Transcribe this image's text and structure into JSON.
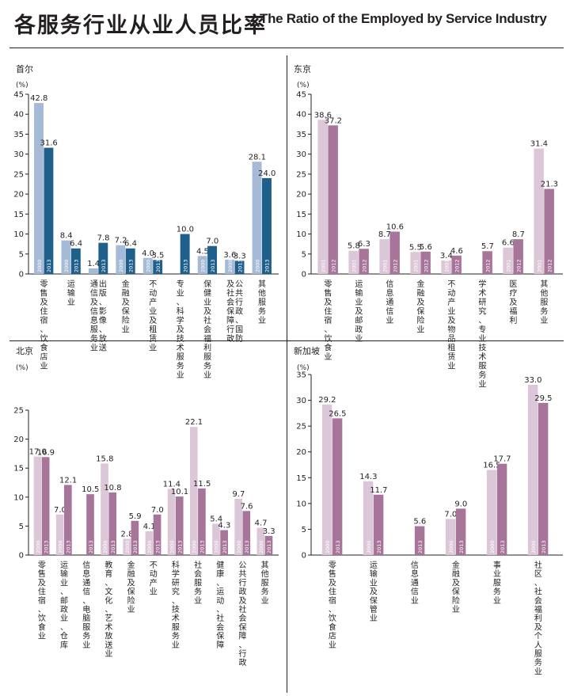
{
  "header": {
    "title_zh": "各服务行业从业人员比率",
    "title_en": "The Ratio of the Employed by Service Industry"
  },
  "chart_data": [
    {
      "type": "bar",
      "city": "首尔",
      "ylabel": "(%)",
      "ylim": [
        0,
        45
      ],
      "yticks": [
        0,
        5,
        10,
        15,
        20,
        25,
        30,
        35,
        40,
        45
      ],
      "grid": false,
      "colors": {
        "2000": "#a4bad6",
        "2013": "#1f5f8b"
      },
      "categories": [
        "零售及住宿、饮食店业",
        "运输业",
        "出版、影像、放送通信及信息服务业",
        "金融及保险业",
        "不动产业及租赁业",
        "专业、科学及技术服务业",
        "保健业及社会福利服务业",
        "公共行政、国防及社会保障行政",
        "其他服务业"
      ],
      "series": [
        {
          "name": "2000",
          "values": [
            42.8,
            8.4,
            1.4,
            7.2,
            4.0,
            null,
            4.5,
            3.6,
            28.1
          ]
        },
        {
          "name": "2013",
          "values": [
            31.6,
            6.4,
            7.8,
            6.4,
            3.5,
            10.0,
            7.0,
            3.3,
            24.0
          ]
        }
      ]
    },
    {
      "type": "bar",
      "city": "东京",
      "ylabel": "(%)",
      "ylim": [
        0,
        45
      ],
      "yticks": [
        0,
        5,
        10,
        15,
        20,
        25,
        30,
        35,
        40,
        45
      ],
      "grid": false,
      "colors": {
        "2001": "#dcc7d8",
        "2012": "#a7749a"
      },
      "categories": [
        "零售及住宿、饮食业",
        "运输业及邮政业",
        "信息通信业",
        "金融及保险业",
        "不动产业及物品租赁业",
        "学术研究、专业技术服务业",
        "医疗及福利",
        "其他服务业"
      ],
      "series": [
        {
          "name": "2001",
          "values": [
            38.6,
            5.8,
            8.7,
            5.5,
            3.4,
            null,
            6.6,
            31.4
          ]
        },
        {
          "name": "2012",
          "values": [
            37.2,
            6.3,
            10.6,
            5.6,
            4.6,
            5.7,
            8.7,
            21.3
          ]
        }
      ]
    },
    {
      "type": "bar",
      "city": "北京",
      "ylabel": "(%)",
      "ylim": [
        0,
        25
      ],
      "yticks": [
        0,
        5,
        10,
        15,
        20,
        25
      ],
      "grid": false,
      "colors": {
        "2000": "#dcc7d8",
        "2013": "#a7749a"
      },
      "categories": [
        "零售及住宿、饮食业",
        "运输业、邮政业、仓库",
        "信息通信、电脑服务业",
        "教育、文化、艺术放送业",
        "金融及保险业",
        "不动产业",
        "科学研究、技术服务业",
        "社会服务业",
        "健康、运动、社会保障",
        "公共行政及社会保障、行政",
        "其他服务业"
      ],
      "series": [
        {
          "name": "2000",
          "values": [
            17.0,
            7.0,
            null,
            15.8,
            2.8,
            4.1,
            11.4,
            22.1,
            5.4,
            9.7,
            4.7
          ]
        },
        {
          "name": "2013",
          "values": [
            16.9,
            12.1,
            10.5,
            10.8,
            5.9,
            7.0,
            10.1,
            11.5,
            4.3,
            7.6,
            3.3
          ]
        }
      ]
    },
    {
      "type": "bar",
      "city": "新加坡",
      "ylabel": "(%)",
      "ylim": [
        0,
        35
      ],
      "yticks": [
        0,
        5,
        10,
        15,
        20,
        25,
        30,
        35
      ],
      "grid": false,
      "colors": {
        "2000": "#dcc7d8",
        "2013": "#a7749a"
      },
      "categories": [
        "零售及住宿、饮食店业",
        "运输业及保管业",
        "信息通信业",
        "金融及保险业",
        "事业服务业",
        "社区、社会福利及个人服务业"
      ],
      "series": [
        {
          "name": "2000",
          "values": [
            29.2,
            14.3,
            null,
            7.0,
            16.5,
            33.0
          ]
        },
        {
          "name": "2013",
          "values": [
            26.5,
            11.7,
            5.6,
            9.0,
            17.7,
            29.5
          ]
        }
      ]
    }
  ]
}
